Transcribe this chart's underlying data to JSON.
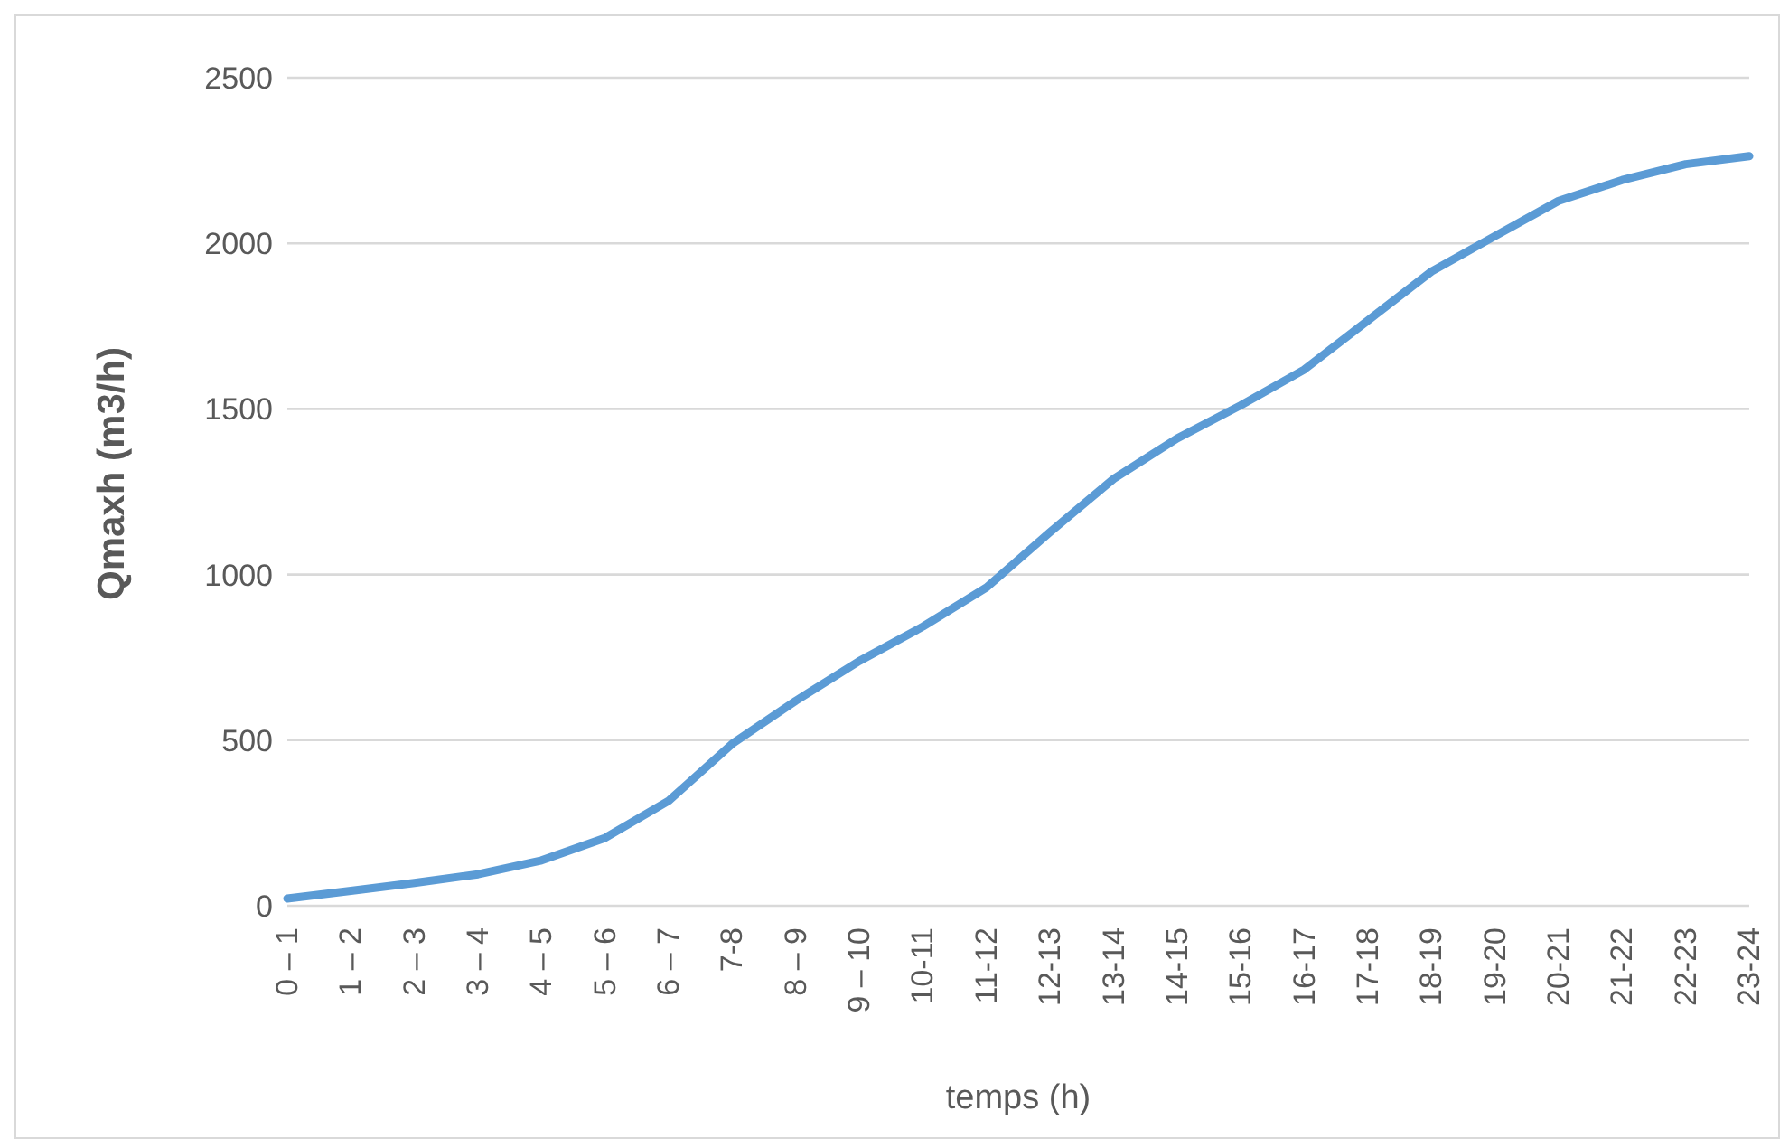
{
  "chart_data": {
    "type": "line",
    "xlabel": "temps (h)",
    "ylabel": "Qmaxh (m3/h)",
    "categories": [
      "0 – 1",
      "1 – 2",
      "2 – 3",
      "3 – 4",
      "4 – 5",
      "5 – 6",
      "6 – 7",
      "7-8",
      "8 – 9",
      "9 – 10",
      "10-11",
      "11-12",
      "12-13",
      "13-14",
      "14-15",
      "15-16",
      "16-17",
      "17-18",
      "18-19",
      "19-20",
      "20-21",
      "21-22",
      "22-23",
      "23-24"
    ],
    "series": [
      {
        "color": "#5b9bd5",
        "values": [
          22,
          45,
          69,
          95,
          137,
          205,
          317,
          489,
          619,
          739,
          843,
          961,
          1128,
          1289,
          1411,
          1511,
          1619,
          1767,
          1915,
          2022,
          2128,
          2191,
          2239,
          2263
        ]
      }
    ],
    "ylim": [
      0,
      2500
    ],
    "yticks": [
      0,
      500,
      1000,
      1500,
      2000,
      2500
    ],
    "grid": "y",
    "legend": false,
    "marker": "none",
    "line_style": "solid"
  }
}
